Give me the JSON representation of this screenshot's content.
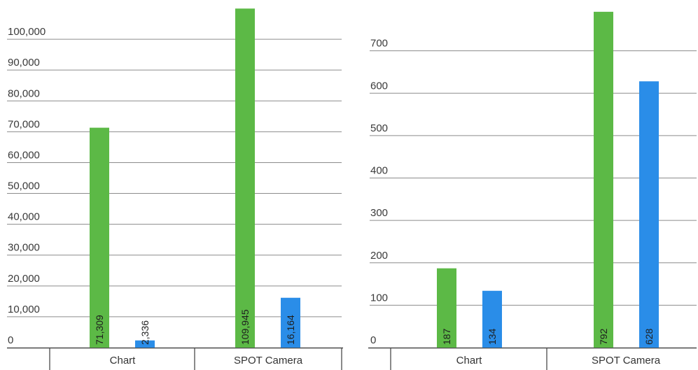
{
  "chart_data": [
    {
      "type": "bar",
      "categories": [
        "Chart",
        "SPOT Camera"
      ],
      "series": [
        {
          "values": [
            71309,
            109945
          ],
          "labels": [
            "71,309",
            "109,945"
          ],
          "color": "#5cb946"
        },
        {
          "values": [
            2336,
            16164
          ],
          "labels": [
            "2,336",
            "16,164"
          ],
          "color": "#2a8de8"
        }
      ],
      "yticks": [
        0,
        10000,
        20000,
        30000,
        40000,
        50000,
        60000,
        70000,
        80000,
        90000,
        100000
      ],
      "ytick_labels": [
        "0",
        "10,000",
        "20,000",
        "30,000",
        "40,000",
        "50,000",
        "60,000",
        "70,000",
        "80,000",
        "90,000",
        "100,000"
      ],
      "ylim": [
        0,
        110000
      ],
      "title": "",
      "xlabel": "",
      "ylabel": "",
      "grid": true
    },
    {
      "type": "bar",
      "categories": [
        "Chart",
        "SPOT Camera"
      ],
      "series": [
        {
          "values": [
            187,
            792
          ],
          "labels": [
            "187",
            "792"
          ],
          "color": "#5cb946"
        },
        {
          "values": [
            134,
            628
          ],
          "labels": [
            "134",
            "628"
          ],
          "color": "#2a8de8"
        }
      ],
      "yticks": [
        0,
        100,
        200,
        300,
        400,
        500,
        600,
        700
      ],
      "ytick_labels": [
        "0",
        "100",
        "200",
        "300",
        "400",
        "500",
        "600",
        "700"
      ],
      "ylim": [
        0,
        800
      ],
      "title": "",
      "xlabel": "",
      "ylabel": "",
      "grid": true
    }
  ]
}
